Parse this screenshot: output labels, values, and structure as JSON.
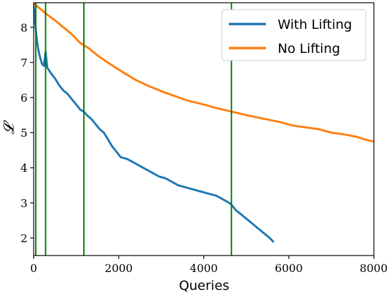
{
  "chart_data": {
    "type": "line",
    "xlabel": "Queries",
    "ylabel": "𝓛",
    "xlim": [
      0,
      8000
    ],
    "ylim": [
      1.5,
      8.7
    ],
    "xticks": [
      0,
      2000,
      4000,
      6000,
      8000
    ],
    "yticks": [
      2,
      3,
      4,
      5,
      6,
      7,
      8
    ],
    "grid": false,
    "legend_position": "upper-right",
    "vlines": {
      "x": [
        50,
        280,
        1180,
        4650
      ],
      "color": "#008000"
    },
    "series": [
      {
        "name": "With Lifting",
        "color": "#1f77b4",
        "x": [
          0,
          30,
          60,
          90,
          120,
          160,
          200,
          240,
          280,
          320,
          400,
          500,
          600,
          700,
          800,
          900,
          1000,
          1100,
          1180,
          1250,
          1350,
          1450,
          1550,
          1650,
          1750,
          1850,
          1950,
          2050,
          2200,
          2350,
          2500,
          2650,
          2800,
          2950,
          3100,
          3250,
          3400,
          3550,
          3700,
          3850,
          4000,
          4150,
          4300,
          4450,
          4600,
          4650,
          4750,
          4850,
          4950,
          5050,
          5150,
          5250,
          5350,
          5450,
          5550,
          5630
        ],
        "y": [
          8.6,
          8.2,
          7.8,
          7.5,
          7.3,
          7.1,
          6.95,
          6.9,
          7.3,
          6.85,
          6.7,
          6.55,
          6.35,
          6.2,
          6.1,
          5.95,
          5.8,
          5.65,
          5.6,
          5.5,
          5.4,
          5.25,
          5.1,
          5.0,
          4.8,
          4.6,
          4.45,
          4.3,
          4.25,
          4.15,
          4.05,
          3.95,
          3.85,
          3.75,
          3.7,
          3.6,
          3.5,
          3.45,
          3.4,
          3.35,
          3.3,
          3.25,
          3.2,
          3.1,
          3.0,
          2.95,
          2.8,
          2.7,
          2.6,
          2.5,
          2.4,
          2.3,
          2.2,
          2.1,
          2.0,
          1.9
        ]
      },
      {
        "name": "No Lifting",
        "color": "#ff7f0e",
        "x": [
          0,
          100,
          200,
          300,
          500,
          700,
          900,
          1100,
          1300,
          1500,
          1800,
          2100,
          2400,
          2700,
          3000,
          3300,
          3600,
          4000,
          4300,
          4650,
          5000,
          5400,
          5800,
          6100,
          6400,
          6700,
          7000,
          7300,
          7600,
          7800,
          8000
        ],
        "y": [
          8.68,
          8.58,
          8.48,
          8.38,
          8.2,
          8.0,
          7.8,
          7.55,
          7.4,
          7.2,
          6.95,
          6.72,
          6.5,
          6.33,
          6.18,
          6.05,
          5.92,
          5.8,
          5.7,
          5.6,
          5.5,
          5.4,
          5.3,
          5.2,
          5.15,
          5.1,
          5.0,
          4.95,
          4.88,
          4.8,
          4.75
        ]
      }
    ]
  }
}
